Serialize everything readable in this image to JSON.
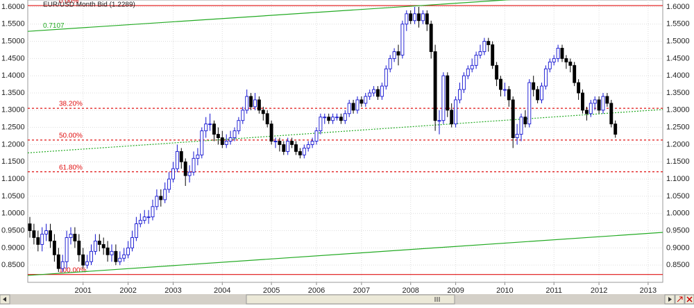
{
  "chart_data": {
    "type": "candlestick",
    "title": "EUR/USD Month Bid (1.2289)",
    "up_color": "#1010d0",
    "down_color": "#000000",
    "level_color": "#e01010",
    "trend_color": "#22aa22",
    "grid": true,
    "ylim": [
      0.8,
      1.62
    ],
    "yticks": [
      {
        "value": 0.85,
        "label": "0.8500"
      },
      {
        "value": 0.9,
        "label": "0.9000"
      },
      {
        "value": 0.95,
        "label": "0.9500"
      },
      {
        "value": 1.0,
        "label": "1.0000"
      },
      {
        "value": 1.05,
        "label": "1.0500"
      },
      {
        "value": 1.1,
        "label": "1.1000"
      },
      {
        "value": 1.15,
        "label": "1.1500"
      },
      {
        "value": 1.2,
        "label": "1.2000"
      },
      {
        "value": 1.25,
        "label": "1.2500"
      },
      {
        "value": 1.3,
        "label": "1.3000"
      },
      {
        "value": 1.35,
        "label": "1.3500"
      },
      {
        "value": 1.4,
        "label": "1.4000"
      },
      {
        "value": 1.45,
        "label": "1.4500"
      },
      {
        "value": 1.5,
        "label": "1.5000"
      },
      {
        "value": 1.55,
        "label": "1.5500"
      },
      {
        "value": 1.6,
        "label": "1.6000"
      }
    ],
    "categories": [
      null,
      null,
      null,
      null,
      null,
      null,
      null,
      null,
      null,
      null,
      null,
      null,
      null,
      "2001",
      null,
      null,
      null,
      null,
      null,
      null,
      null,
      null,
      null,
      null,
      "2002",
      null,
      null,
      null,
      null,
      null,
      null,
      null,
      null,
      null,
      null,
      "2003",
      null,
      null,
      null,
      null,
      null,
      null,
      null,
      null,
      null,
      null,
      null,
      "2004",
      null,
      null,
      null,
      null,
      null,
      null,
      null,
      null,
      null,
      null,
      null,
      "2005",
      null,
      null,
      null,
      null,
      null,
      null,
      null,
      null,
      null,
      null,
      "2006",
      null,
      null,
      null,
      null,
      null,
      null,
      null,
      null,
      null,
      null,
      "2007",
      null,
      null,
      null,
      null,
      null,
      null,
      null,
      null,
      null,
      null,
      null,
      "2008",
      null,
      null,
      null,
      null,
      null,
      null,
      null,
      null,
      null,
      null,
      "2009",
      null,
      null,
      null,
      null,
      null,
      null,
      null,
      null,
      null,
      null,
      null,
      "2010",
      null,
      null,
      null,
      null,
      null,
      null,
      null,
      null,
      null,
      null,
      null,
      "2011",
      null,
      null,
      null,
      null,
      null,
      null,
      null,
      null,
      null,
      null,
      "2012",
      null,
      null,
      null,
      null,
      null,
      null,
      null,
      null,
      null,
      null,
      null,
      "2013"
    ],
    "open": [
      0.97,
      0.95,
      0.93,
      0.91,
      0.94,
      0.95,
      0.92,
      0.88,
      0.84,
      0.86,
      0.93,
      0.94,
      0.92,
      0.88,
      0.85,
      0.86,
      0.89,
      0.92,
      0.91,
      0.9,
      0.88,
      0.89,
      0.86,
      0.87,
      0.88,
      0.9,
      0.93,
      0.97,
      0.98,
      0.99,
      0.99,
      1.02,
      1.05,
      1.04,
      1.07,
      1.1,
      1.13,
      1.18,
      1.15,
      1.11,
      1.12,
      1.16,
      1.17,
      1.24,
      1.26,
      1.26,
      1.23,
      1.22,
      1.2,
      1.21,
      1.22,
      1.24,
      1.27,
      1.3,
      1.34,
      1.31,
      1.33,
      1.3,
      1.29,
      1.26,
      1.21,
      1.21,
      1.2,
      1.18,
      1.21,
      1.2,
      1.18,
      1.17,
      1.19,
      1.2,
      1.21,
      1.24,
      1.28,
      1.28,
      1.27,
      1.28,
      1.28,
      1.27,
      1.29,
      1.32,
      1.3,
      1.33,
      1.32,
      1.34,
      1.35,
      1.36,
      1.34,
      1.37,
      1.42,
      1.45,
      1.47,
      1.46,
      1.55,
      1.58,
      1.56,
      1.58,
      1.56,
      1.58,
      1.55,
      1.47,
      1.27,
      1.27,
      1.4,
      1.3,
      1.26,
      1.33,
      1.36,
      1.4,
      1.42,
      1.43,
      1.46,
      1.47,
      1.5,
      1.49,
      1.43,
      1.39,
      1.36,
      1.36,
      1.33,
      1.22,
      1.23,
      1.28,
      1.26,
      1.38,
      1.36,
      1.33,
      1.37,
      1.42,
      1.44,
      1.45,
      1.48,
      1.45,
      1.44,
      1.43,
      1.38,
      1.35,
      1.3,
      1.29,
      1.32,
      1.33,
      1.3,
      1.34,
      1.32,
      1.26,
      null,
      null,
      null,
      null,
      null,
      null,
      null,
      null
    ],
    "high": [
      0.99,
      0.97,
      0.95,
      0.96,
      0.97,
      0.97,
      0.94,
      0.9,
      0.88,
      0.95,
      0.96,
      0.96,
      0.94,
      0.9,
      0.88,
      0.91,
      0.94,
      0.94,
      0.93,
      0.92,
      0.91,
      0.91,
      0.89,
      0.9,
      0.92,
      0.95,
      0.99,
      1.0,
      1.01,
      1.01,
      1.04,
      1.07,
      1.07,
      1.09,
      1.12,
      1.15,
      1.2,
      1.19,
      1.16,
      1.14,
      1.18,
      1.19,
      1.25,
      1.28,
      1.29,
      1.27,
      1.25,
      1.24,
      1.23,
      1.24,
      1.25,
      1.28,
      1.31,
      1.36,
      1.35,
      1.35,
      1.34,
      1.31,
      1.3,
      1.27,
      1.22,
      1.22,
      1.21,
      1.22,
      1.22,
      1.21,
      1.19,
      1.2,
      1.21,
      1.22,
      1.25,
      1.29,
      1.29,
      1.29,
      1.29,
      1.29,
      1.29,
      1.3,
      1.33,
      1.33,
      1.34,
      1.34,
      1.35,
      1.36,
      1.37,
      1.37,
      1.38,
      1.43,
      1.46,
      1.48,
      1.49,
      1.56,
      1.59,
      1.59,
      1.6,
      1.6,
      1.59,
      1.59,
      1.56,
      1.49,
      1.3,
      1.41,
      1.41,
      1.32,
      1.34,
      1.38,
      1.41,
      1.43,
      1.45,
      1.47,
      1.49,
      1.51,
      1.51,
      1.5,
      1.44,
      1.4,
      1.38,
      1.37,
      1.34,
      1.26,
      1.29,
      1.3,
      1.39,
      1.4,
      1.37,
      1.38,
      1.43,
      1.45,
      1.46,
      1.49,
      1.49,
      1.46,
      1.45,
      1.44,
      1.39,
      1.36,
      1.31,
      1.33,
      1.34,
      1.34,
      1.35,
      1.35,
      1.33,
      1.27,
      null,
      null,
      null,
      null,
      null,
      null,
      null,
      null
    ],
    "low": [
      0.93,
      0.91,
      0.89,
      0.89,
      0.92,
      0.9,
      0.86,
      0.83,
      0.83,
      0.84,
      0.91,
      0.9,
      0.86,
      0.84,
      0.84,
      0.85,
      0.88,
      0.89,
      0.88,
      0.86,
      0.86,
      0.85,
      0.85,
      0.86,
      0.87,
      0.89,
      0.92,
      0.96,
      0.97,
      0.97,
      0.98,
      1.01,
      1.02,
      1.03,
      1.06,
      1.09,
      1.12,
      1.13,
      1.08,
      1.09,
      1.11,
      1.14,
      1.16,
      1.22,
      1.24,
      1.21,
      1.2,
      1.19,
      1.19,
      1.2,
      1.21,
      1.23,
      1.26,
      1.29,
      1.3,
      1.3,
      1.29,
      1.27,
      1.25,
      1.2,
      1.19,
      1.18,
      1.17,
      1.17,
      1.19,
      1.17,
      1.16,
      1.16,
      1.18,
      1.19,
      1.2,
      1.23,
      1.26,
      1.26,
      1.26,
      1.27,
      1.26,
      1.26,
      1.28,
      1.29,
      1.29,
      1.31,
      1.31,
      1.33,
      1.34,
      1.33,
      1.33,
      1.36,
      1.41,
      1.44,
      1.43,
      1.45,
      1.53,
      1.55,
      1.55,
      1.54,
      1.55,
      1.53,
      1.45,
      1.24,
      1.23,
      1.26,
      1.28,
      1.25,
      1.25,
      1.32,
      1.35,
      1.39,
      1.41,
      1.42,
      1.45,
      1.46,
      1.47,
      1.42,
      1.37,
      1.34,
      1.34,
      1.31,
      1.19,
      1.2,
      1.21,
      1.25,
      1.25,
      1.34,
      1.32,
      1.32,
      1.36,
      1.41,
      1.43,
      1.44,
      1.44,
      1.42,
      1.41,
      1.37,
      1.33,
      1.29,
      1.27,
      1.28,
      1.3,
      1.29,
      1.29,
      1.31,
      1.25,
      1.22,
      null,
      null,
      null,
      null,
      null,
      null,
      null,
      null
    ],
    "close": [
      0.95,
      0.93,
      0.91,
      0.94,
      0.95,
      0.92,
      0.88,
      0.84,
      0.86,
      0.93,
      0.94,
      0.92,
      0.88,
      0.85,
      0.86,
      0.89,
      0.92,
      0.91,
      0.9,
      0.88,
      0.89,
      0.86,
      0.87,
      0.88,
      0.9,
      0.93,
      0.97,
      0.98,
      0.99,
      0.99,
      1.02,
      1.05,
      1.04,
      1.07,
      1.1,
      1.13,
      1.18,
      1.15,
      1.11,
      1.12,
      1.16,
      1.17,
      1.24,
      1.26,
      1.26,
      1.23,
      1.22,
      1.2,
      1.21,
      1.22,
      1.24,
      1.27,
      1.3,
      1.34,
      1.31,
      1.33,
      1.3,
      1.29,
      1.26,
      1.21,
      1.21,
      1.2,
      1.18,
      1.21,
      1.2,
      1.18,
      1.17,
      1.19,
      1.2,
      1.21,
      1.24,
      1.28,
      1.28,
      1.27,
      1.28,
      1.28,
      1.27,
      1.29,
      1.32,
      1.3,
      1.33,
      1.32,
      1.34,
      1.35,
      1.36,
      1.34,
      1.37,
      1.42,
      1.45,
      1.47,
      1.46,
      1.55,
      1.58,
      1.56,
      1.58,
      1.56,
      1.58,
      1.55,
      1.47,
      1.27,
      1.27,
      1.4,
      1.3,
      1.26,
      1.33,
      1.36,
      1.4,
      1.42,
      1.43,
      1.46,
      1.47,
      1.5,
      1.49,
      1.43,
      1.39,
      1.36,
      1.36,
      1.33,
      1.22,
      1.23,
      1.28,
      1.26,
      1.38,
      1.36,
      1.33,
      1.37,
      1.42,
      1.44,
      1.45,
      1.48,
      1.45,
      1.44,
      1.43,
      1.38,
      1.35,
      1.3,
      1.29,
      1.32,
      1.33,
      1.3,
      1.34,
      1.32,
      1.26,
      1.23,
      null,
      null,
      null,
      null,
      null,
      null,
      null,
      null
    ],
    "levels": [
      {
        "label": "0.00%",
        "value": 1.6038,
        "dashed": false
      },
      {
        "label": "38.20%",
        "value": 1.3055,
        "dashed": true
      },
      {
        "label": "50.00%",
        "value": 1.2133,
        "dashed": true
      },
      {
        "label": "61.80%",
        "value": 1.1211,
        "dashed": true
      },
      {
        "label": "100.00%",
        "value": 0.8228,
        "dashed": false
      }
    ],
    "trendlines": [
      {
        "label": "0.7107",
        "start": 1.529,
        "end": 1.65,
        "dashed": false
      },
      {
        "start": 1.176,
        "end": 1.302,
        "dashed": true
      },
      {
        "start": 0.82,
        "end": 0.945,
        "dashed": false
      }
    ]
  }
}
